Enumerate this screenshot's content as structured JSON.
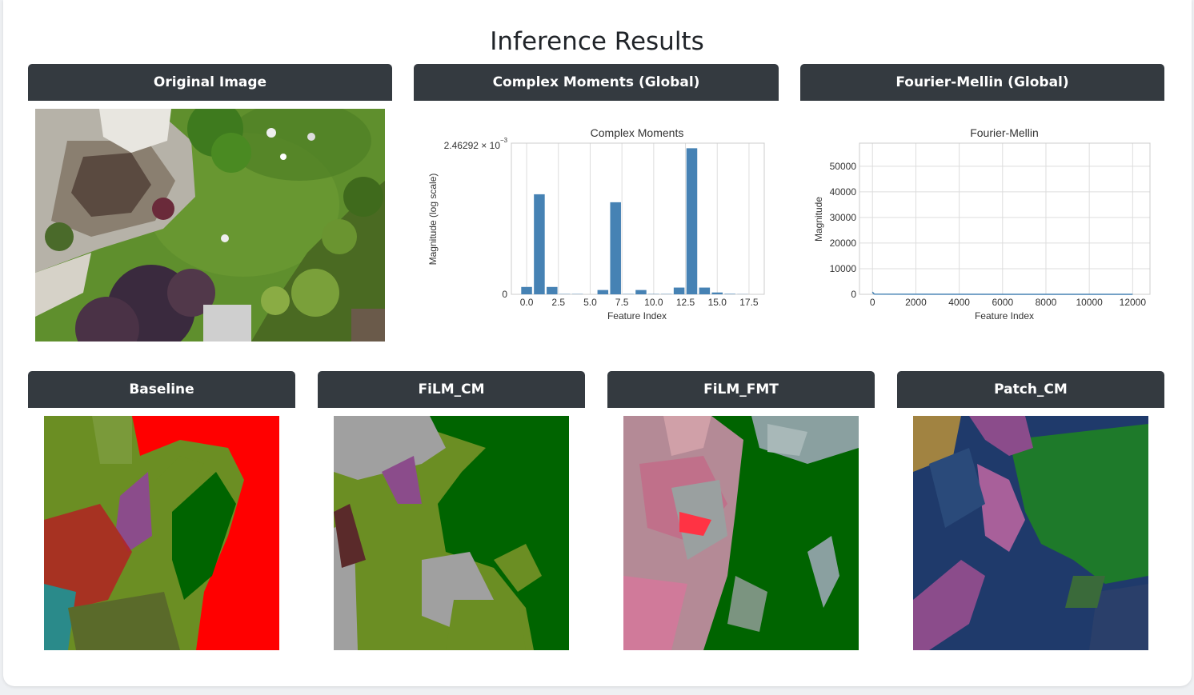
{
  "page": {
    "title": "Inference Results"
  },
  "panels": {
    "original": "Original Image",
    "cm": "Complex Moments (Global)",
    "fm": "Fourier-Mellin (Global)"
  },
  "results": [
    "Baseline",
    "FiLM_CM",
    "FiLM_FMT",
    "Patch_CM"
  ],
  "chart_data": [
    {
      "type": "bar",
      "title": "Complex Moments",
      "xlabel": "Feature Index",
      "ylabel": "Magnitude (log scale)",
      "ytick_top": "2.46292 × 10",
      "ytick_top_exp": "−3",
      "ytick_zero": "0",
      "xticks": [
        "0.0",
        "2.5",
        "5.0",
        "7.5",
        "10.0",
        "12.5",
        "15.0",
        "17.5"
      ],
      "xlim": [
        -1.2,
        18.7
      ],
      "ylim": [
        0,
        0.00246292
      ],
      "x": [
        0,
        1,
        2,
        3,
        4,
        5,
        6,
        7,
        8,
        9,
        10,
        11,
        12,
        13,
        14,
        15,
        16,
        17
      ],
      "values": [
        0.00012,
        0.00163,
        0.00012,
        5e-06,
        5e-06,
        0.0,
        7e-05,
        0.0015,
        5e-06,
        7e-05,
        5e-06,
        5e-06,
        0.00011,
        0.00238,
        0.00011,
        3e-05,
        8e-06,
        3e-06
      ],
      "bar_color": "#4682b4",
      "grid": true
    },
    {
      "type": "line",
      "title": "Fourier-Mellin",
      "xlabel": "Feature Index",
      "ylabel": "Magnitude",
      "xticks": [
        "0",
        "2000",
        "4000",
        "6000",
        "8000",
        "10000",
        "12000"
      ],
      "yticks": [
        "0",
        "10000",
        "20000",
        "30000",
        "40000",
        "50000"
      ],
      "xlim": [
        -600,
        12800
      ],
      "ylim": [
        0,
        59000
      ],
      "x": [
        0,
        50,
        100,
        2000,
        6000,
        8000,
        12000
      ],
      "values": [
        900,
        300,
        60,
        20,
        15,
        10,
        5
      ],
      "line_color": "#4682b4",
      "grid": true
    }
  ],
  "colors": {
    "header_bg": "#343a40",
    "header_text": "#ffffff",
    "grass": "#5a8a2a",
    "seg_green": "#006400",
    "seg_olive": "#6b8e23",
    "seg_red": "#ff0000",
    "seg_purple": "#8b4c8b",
    "seg_navy": "#1f3a6b",
    "seg_gray": "#a0a0a0",
    "seg_pink": "#c0708a"
  }
}
